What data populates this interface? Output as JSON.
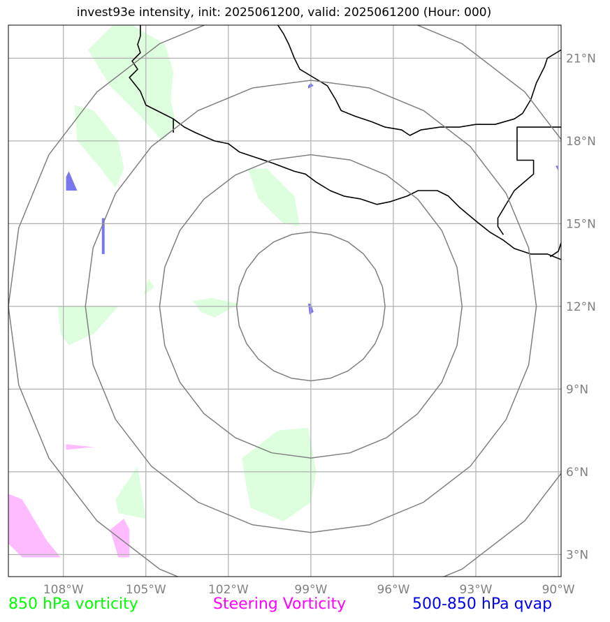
{
  "title": "invest93e intensity, init: 2025061200, valid: 2025061200 (Hour: 000)",
  "map": {
    "lon_range": [
      -110.0,
      -89.9
    ],
    "lat_range": [
      2.2,
      22.2
    ],
    "lon_ticks": [
      {
        "value": -108,
        "label": "108°W"
      },
      {
        "value": -105,
        "label": "105°W"
      },
      {
        "value": -102,
        "label": "102°W"
      },
      {
        "value": -99,
        "label": "99°W"
      },
      {
        "value": -96,
        "label": "96°W"
      },
      {
        "value": -93,
        "label": "93°W"
      },
      {
        "value": -90,
        "label": "90°W"
      }
    ],
    "lat_ticks": [
      {
        "value": 3,
        "label": "3°N"
      },
      {
        "value": 6,
        "label": "6°N"
      },
      {
        "value": 9,
        "label": "9°N"
      },
      {
        "value": 12,
        "label": "12°N"
      },
      {
        "value": 15,
        "label": "15°N"
      },
      {
        "value": 18,
        "label": "18°N"
      },
      {
        "value": 21,
        "label": "21°N"
      }
    ],
    "grid": true,
    "storm_center": {
      "lon": -99.0,
      "lat": 12.0
    },
    "range_rings_deg": [
      2.7,
      5.5,
      8.2,
      11.0
    ],
    "colors": {
      "vorticity_850": "#ddffdd",
      "steering_vorticity": "#ffbbff",
      "qvap_500_850": "#7777ee",
      "rings": "#808080",
      "coast": "#000000",
      "grid": "#b0b0b0"
    },
    "coastline": [
      [
        [
          -105.2,
          22.2
        ],
        [
          -105.2,
          21.8
        ],
        [
          -105.3,
          21.5
        ],
        [
          -105.2,
          21.2
        ],
        [
          -105.5,
          20.9
        ],
        [
          -105.3,
          20.6
        ],
        [
          -105.6,
          20.3
        ],
        [
          -105.2,
          19.8
        ],
        [
          -105.0,
          19.3
        ],
        [
          -104.4,
          19.0
        ],
        [
          -104.0,
          18.8
        ],
        [
          -103.6,
          18.5
        ],
        [
          -103.2,
          18.3
        ],
        [
          -102.5,
          18.0
        ],
        [
          -102.0,
          17.9
        ],
        [
          -101.6,
          17.6
        ],
        [
          -101.0,
          17.4
        ],
        [
          -100.4,
          17.2
        ],
        [
          -99.6,
          16.9
        ],
        [
          -99.2,
          16.8
        ],
        [
          -98.8,
          16.5
        ],
        [
          -98.3,
          16.2
        ],
        [
          -97.8,
          16.0
        ],
        [
          -97.2,
          15.9
        ],
        [
          -96.6,
          15.7
        ],
        [
          -96.1,
          15.8
        ],
        [
          -95.5,
          16.0
        ],
        [
          -95.1,
          16.2
        ],
        [
          -94.8,
          16.2
        ],
        [
          -94.4,
          16.2
        ],
        [
          -94.0,
          16.0
        ],
        [
          -93.6,
          15.6
        ],
        [
          -93.0,
          15.1
        ],
        [
          -92.5,
          14.7
        ],
        [
          -92.0,
          14.4
        ],
        [
          -91.6,
          14.1
        ],
        [
          -91.0,
          13.9
        ],
        [
          -90.4,
          13.9
        ],
        [
          -89.9,
          13.7
        ]
      ],
      [
        [
          -100.2,
          22.2
        ],
        [
          -100.0,
          21.9
        ],
        [
          -99.8,
          21.5
        ],
        [
          -99.6,
          21.0
        ],
        [
          -99.4,
          20.6
        ],
        [
          -98.9,
          20.3
        ],
        [
          -98.4,
          20.0
        ],
        [
          -98.1,
          19.5
        ],
        [
          -97.9,
          19.1
        ],
        [
          -97.4,
          18.9
        ],
        [
          -96.8,
          18.7
        ],
        [
          -96.3,
          18.5
        ],
        [
          -95.7,
          18.4
        ],
        [
          -95.4,
          18.2
        ],
        [
          -95.0,
          18.4
        ],
        [
          -94.3,
          18.5
        ],
        [
          -93.6,
          18.5
        ],
        [
          -93.0,
          18.6
        ],
        [
          -92.3,
          18.6
        ],
        [
          -91.6,
          18.8
        ],
        [
          -91.3,
          19.0
        ],
        [
          -91.0,
          19.5
        ],
        [
          -90.8,
          20.1
        ],
        [
          -90.5,
          20.7
        ],
        [
          -90.4,
          21.0
        ],
        [
          -89.9,
          21.3
        ]
      ],
      [
        [
          -89.9,
          18.5
        ],
        [
          -90.0,
          18.5
        ],
        [
          -91.5,
          18.5
        ],
        [
          -91.5,
          17.3
        ],
        [
          -90.9,
          17.3
        ],
        [
          -90.9,
          16.8
        ],
        [
          -91.6,
          16.2
        ],
        [
          -92.2,
          15.2
        ],
        [
          -92.2,
          14.9
        ],
        [
          -92.0,
          14.6
        ]
      ],
      [
        [
          -89.9,
          14.3
        ],
        [
          -90.0,
          14.0
        ],
        [
          -90.3,
          13.8
        ]
      ],
      [
        [
          -104.0,
          18.8
        ],
        [
          -104.0,
          18.3
        ]
      ]
    ],
    "vorticity_850_regions": [
      [
        [
          -107.1,
          21.3
        ],
        [
          -106.2,
          22.2
        ],
        [
          -105.5,
          22.2
        ],
        [
          -104.3,
          21.5
        ],
        [
          -104.0,
          20.5
        ],
        [
          -104.1,
          19.5
        ],
        [
          -103.9,
          18.6
        ],
        [
          -104.4,
          18.0
        ],
        [
          -105.2,
          18.9
        ],
        [
          -106.3,
          20.0
        ]
      ],
      [
        [
          -107.6,
          19.3
        ],
        [
          -106.9,
          19.1
        ],
        [
          -106.0,
          18.0
        ],
        [
          -105.8,
          17.0
        ],
        [
          -106.1,
          16.3
        ],
        [
          -106.8,
          17.2
        ],
        [
          -107.5,
          18.0
        ]
      ],
      [
        [
          -101.3,
          17.0
        ],
        [
          -100.6,
          17.0
        ],
        [
          -99.6,
          16.0
        ],
        [
          -99.4,
          14.9
        ],
        [
          -100.0,
          15.0
        ],
        [
          -100.9,
          15.9
        ]
      ],
      [
        [
          -108.2,
          12.0
        ],
        [
          -106.0,
          12.0
        ],
        [
          -106.9,
          11.0
        ],
        [
          -107.8,
          10.6
        ],
        [
          -108.1,
          11.0
        ]
      ],
      [
        [
          -104.9,
          13.0
        ],
        [
          -104.7,
          12.7
        ],
        [
          -105.1,
          12.4
        ]
      ],
      [
        [
          -103.3,
          12.2
        ],
        [
          -102.6,
          12.3
        ],
        [
          -101.6,
          12.1
        ],
        [
          -102.5,
          11.6
        ],
        [
          -103.0,
          11.8
        ]
      ],
      [
        [
          -101.5,
          6.5
        ],
        [
          -100.2,
          7.5
        ],
        [
          -99.1,
          7.6
        ],
        [
          -98.8,
          6.0
        ],
        [
          -99.0,
          4.9
        ],
        [
          -100.0,
          4.2
        ],
        [
          -101.2,
          4.7
        ],
        [
          -101.4,
          5.8
        ]
      ],
      [
        [
          -106.1,
          5.0
        ],
        [
          -105.3,
          6.2
        ],
        [
          -105.0,
          4.3
        ],
        [
          -106.0,
          4.5
        ]
      ]
    ],
    "steering_vorticity_regions": [
      [
        [
          -110.0,
          5.2
        ],
        [
          -109.5,
          5.0
        ],
        [
          -108.6,
          3.5
        ],
        [
          -108.1,
          2.9
        ],
        [
          -109.5,
          2.9
        ],
        [
          -110.0,
          3.4
        ]
      ],
      [
        [
          -107.9,
          7.0
        ],
        [
          -106.9,
          6.9
        ],
        [
          -107.9,
          6.8
        ]
      ],
      [
        [
          -106.3,
          3.9
        ],
        [
          -105.8,
          4.3
        ],
        [
          -105.6,
          3.9
        ],
        [
          -105.6,
          2.9
        ],
        [
          -106.0,
          2.9
        ]
      ]
    ],
    "qvap_regions": [
      [
        [
          -107.9,
          16.7
        ],
        [
          -107.8,
          16.9
        ],
        [
          -107.5,
          16.2
        ],
        [
          -107.9,
          16.2
        ]
      ],
      [
        [
          -106.6,
          15.2
        ],
        [
          -106.5,
          15.2
        ],
        [
          -106.5,
          13.9
        ],
        [
          -106.6,
          13.9
        ]
      ],
      [
        [
          -99.1,
          12.1
        ],
        [
          -99.0,
          12.1
        ],
        [
          -98.9,
          11.8
        ],
        [
          -99.05,
          11.7
        ]
      ],
      [
        [
          -99.1,
          20.0
        ],
        [
          -99.0,
          20.1
        ],
        [
          -98.9,
          20.0
        ],
        [
          -99.1,
          19.9
        ]
      ],
      [
        [
          -90.1,
          17.1
        ],
        [
          -90.0,
          17.1
        ],
        [
          -90.0,
          16.9
        ]
      ]
    ]
  },
  "legend": {
    "vorticity_850": {
      "label": "850 hPa vorticity",
      "color": "#00ff00"
    },
    "steering": {
      "label": "Steering Vorticity",
      "color": "#ff00ff"
    },
    "qvap": {
      "label": "500-850 hPa qvap",
      "color": "#0000ee"
    }
  }
}
